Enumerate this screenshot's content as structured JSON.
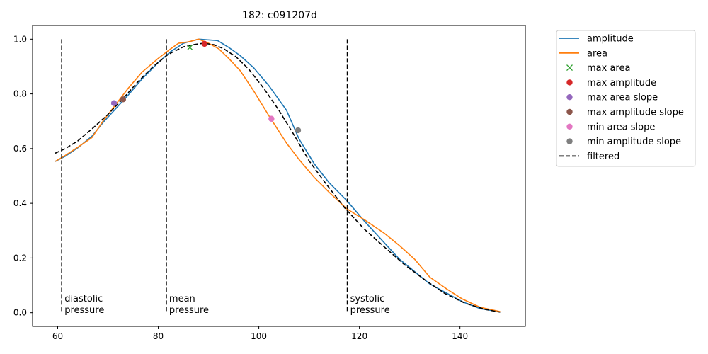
{
  "chart_data": {
    "type": "line",
    "title": "182: c091207d",
    "xlabel": "",
    "ylabel": "",
    "xlim": [
      55,
      153
    ],
    "ylim": [
      -0.05,
      1.05
    ],
    "xticks": [
      60,
      80,
      100,
      120,
      140
    ],
    "yticks": [
      0.0,
      0.2,
      0.4,
      0.6,
      0.8,
      1.0
    ],
    "xtick_labels": [
      "60",
      "80",
      "100",
      "120",
      "140"
    ],
    "ytick_labels": [
      "0.0",
      "0.2",
      "0.4",
      "0.6",
      "0.8",
      "1.0"
    ],
    "grid": false,
    "legend_position": "outside-right-top",
    "colors": {
      "amplitude": "#1f77b4",
      "area": "#ff7f0e",
      "max_area": "#2ca02c",
      "max_amplitude": "#d62728",
      "max_area_slope": "#9467bd",
      "max_amplitude_slope": "#8c564b",
      "min_area_slope": "#e377c2",
      "min_amplitude_slope": "#7f7f7f",
      "filtered": "#000000"
    },
    "series": [
      {
        "name": "amplitude",
        "style": "solid",
        "x": [
          59.5,
          61.5,
          64,
          66.8,
          69,
          71.5,
          74,
          76.8,
          80,
          82.5,
          85,
          88,
          91.8,
          94,
          96.3,
          99,
          102,
          105.5,
          108,
          111,
          114,
          117.5,
          121,
          125,
          128,
          131,
          134,
          137.5,
          140.5,
          144,
          148
        ],
        "y": [
          0.553,
          0.572,
          0.603,
          0.645,
          0.695,
          0.745,
          0.795,
          0.855,
          0.915,
          0.955,
          0.985,
          1.0,
          0.995,
          0.97,
          0.94,
          0.895,
          0.83,
          0.74,
          0.635,
          0.545,
          0.475,
          0.41,
          0.335,
          0.255,
          0.195,
          0.15,
          0.105,
          0.07,
          0.04,
          0.015,
          0.003
        ]
      },
      {
        "name": "area",
        "style": "solid",
        "x": [
          59.5,
          61.5,
          64,
          66.8,
          69,
          71.5,
          74,
          76.8,
          80,
          82.5,
          84,
          86,
          88,
          90,
          92,
          94,
          96.3,
          99,
          102,
          105.5,
          108,
          111,
          114,
          117.5,
          121,
          125,
          128,
          131,
          134,
          137.5,
          140.5,
          144,
          148
        ],
        "y": [
          0.553,
          0.575,
          0.605,
          0.64,
          0.7,
          0.76,
          0.82,
          0.88,
          0.93,
          0.965,
          0.985,
          0.99,
          1.0,
          0.985,
          0.965,
          0.93,
          0.885,
          0.81,
          0.72,
          0.62,
          0.56,
          0.495,
          0.44,
          0.38,
          0.34,
          0.29,
          0.245,
          0.195,
          0.13,
          0.085,
          0.05,
          0.02,
          0.004
        ]
      },
      {
        "name": "filtered",
        "style": "dashed",
        "x": [
          59.5,
          61.5,
          64,
          67,
          70,
          73,
          76,
          79,
          82,
          85,
          87,
          89,
          91,
          93,
          95.5,
          98,
          101,
          104,
          107,
          110,
          113,
          117,
          121,
          125,
          129,
          133,
          137,
          141,
          145,
          148
        ],
        "y": [
          0.583,
          0.6,
          0.628,
          0.675,
          0.725,
          0.783,
          0.845,
          0.9,
          0.945,
          0.972,
          0.98,
          0.985,
          0.98,
          0.965,
          0.935,
          0.89,
          0.82,
          0.74,
          0.65,
          0.555,
          0.48,
          0.385,
          0.305,
          0.24,
          0.175,
          0.12,
          0.07,
          0.035,
          0.012,
          0.002
        ]
      }
    ],
    "markers": [
      {
        "name": "max area",
        "symbol": "x",
        "x": 86.3,
        "y": 0.97
      },
      {
        "name": "max amplitude",
        "symbol": "o",
        "x": 89.2,
        "y": 0.983
      },
      {
        "name": "max area slope",
        "symbol": "o",
        "x": 71.2,
        "y": 0.766
      },
      {
        "name": "max amplitude slope",
        "symbol": "o",
        "x": 73,
        "y": 0.78
      },
      {
        "name": "min area slope",
        "symbol": "o",
        "x": 102.5,
        "y": 0.709
      },
      {
        "name": "min amplitude slope",
        "symbol": "o",
        "x": 107.8,
        "y": 0.667
      }
    ],
    "vlines": [
      {
        "x": 60.8,
        "label_line1": "diastolic",
        "label_line2": "pressure"
      },
      {
        "x": 81.6,
        "label_line1": "mean",
        "label_line2": "pressure"
      },
      {
        "x": 117.6,
        "label_line1": "systolic",
        "label_line2": "pressure"
      }
    ],
    "vline_range": [
      0.0,
      1.0
    ],
    "legend": [
      {
        "label": "amplitude",
        "kind": "line",
        "color_key": "amplitude"
      },
      {
        "label": "area",
        "kind": "line",
        "color_key": "area"
      },
      {
        "label": "max area",
        "kind": "x",
        "color_key": "max_area"
      },
      {
        "label": "max amplitude",
        "kind": "dot",
        "color_key": "max_amplitude"
      },
      {
        "label": "max area slope",
        "kind": "dot",
        "color_key": "max_area_slope"
      },
      {
        "label": "max amplitude slope",
        "kind": "dot",
        "color_key": "max_amplitude_slope"
      },
      {
        "label": "min area slope",
        "kind": "dot",
        "color_key": "min_area_slope"
      },
      {
        "label": "min amplitude slope",
        "kind": "dot",
        "color_key": "min_amplitude_slope"
      },
      {
        "label": "filtered",
        "kind": "dashed",
        "color_key": "filtered"
      }
    ]
  }
}
